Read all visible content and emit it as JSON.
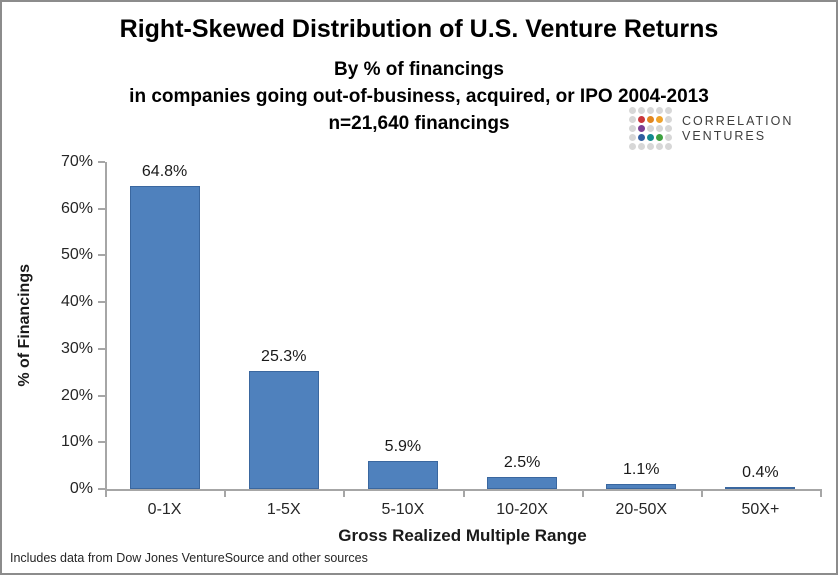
{
  "chart_data": {
    "type": "bar",
    "title": "Right-Skewed Distribution of U.S. Venture Returns",
    "subtitle_lines": [
      "By % of financings",
      "in companies going out-of-business, acquired, or IPO 2004-2013",
      "n=21,640 financings"
    ],
    "categories": [
      "0-1X",
      "1-5X",
      "5-10X",
      "10-20X",
      "20-50X",
      "50X+"
    ],
    "values": [
      64.8,
      25.3,
      5.9,
      2.5,
      1.1,
      0.4
    ],
    "value_labels": [
      "64.8%",
      "25.3%",
      "5.9%",
      "2.5%",
      "1.1%",
      "0.4%"
    ],
    "xlabel": "Gross Realized Multiple Range",
    "ylabel": "% of Financings",
    "ylim": [
      0,
      70
    ],
    "ytick_step": 10,
    "ytick_labels": [
      "0%",
      "10%",
      "20%",
      "30%",
      "40%",
      "50%",
      "60%",
      "70%"
    ],
    "grid": false,
    "legend": "none",
    "bar_color": "#4F81BD",
    "bar_border_color": "#3A679F",
    "axis_color": "#A6A6A6"
  },
  "logo": {
    "name": "Correlation Ventures",
    "line1": "CORRELATION",
    "line2": "VENTURES",
    "palette": {
      "g": "#D7D7D7",
      "red": "#C9363C",
      "orange": "#E1861F",
      "amber": "#EFA32B",
      "purple": "#7C3F94",
      "blue": "#2F5DA0",
      "teal": "#128A8F",
      "green": "#3EA13F"
    },
    "grid": [
      [
        "g",
        "g",
        "g",
        "g",
        "g"
      ],
      [
        "g",
        "red",
        "orange",
        "amber",
        "g"
      ],
      [
        "g",
        "purple",
        "g",
        "g",
        "g"
      ],
      [
        "g",
        "blue",
        "teal",
        "green",
        "g"
      ],
      [
        "g",
        "g",
        "g",
        "g",
        "g"
      ]
    ]
  },
  "footnote": "Includes data from Dow Jones VentureSource and other sources"
}
